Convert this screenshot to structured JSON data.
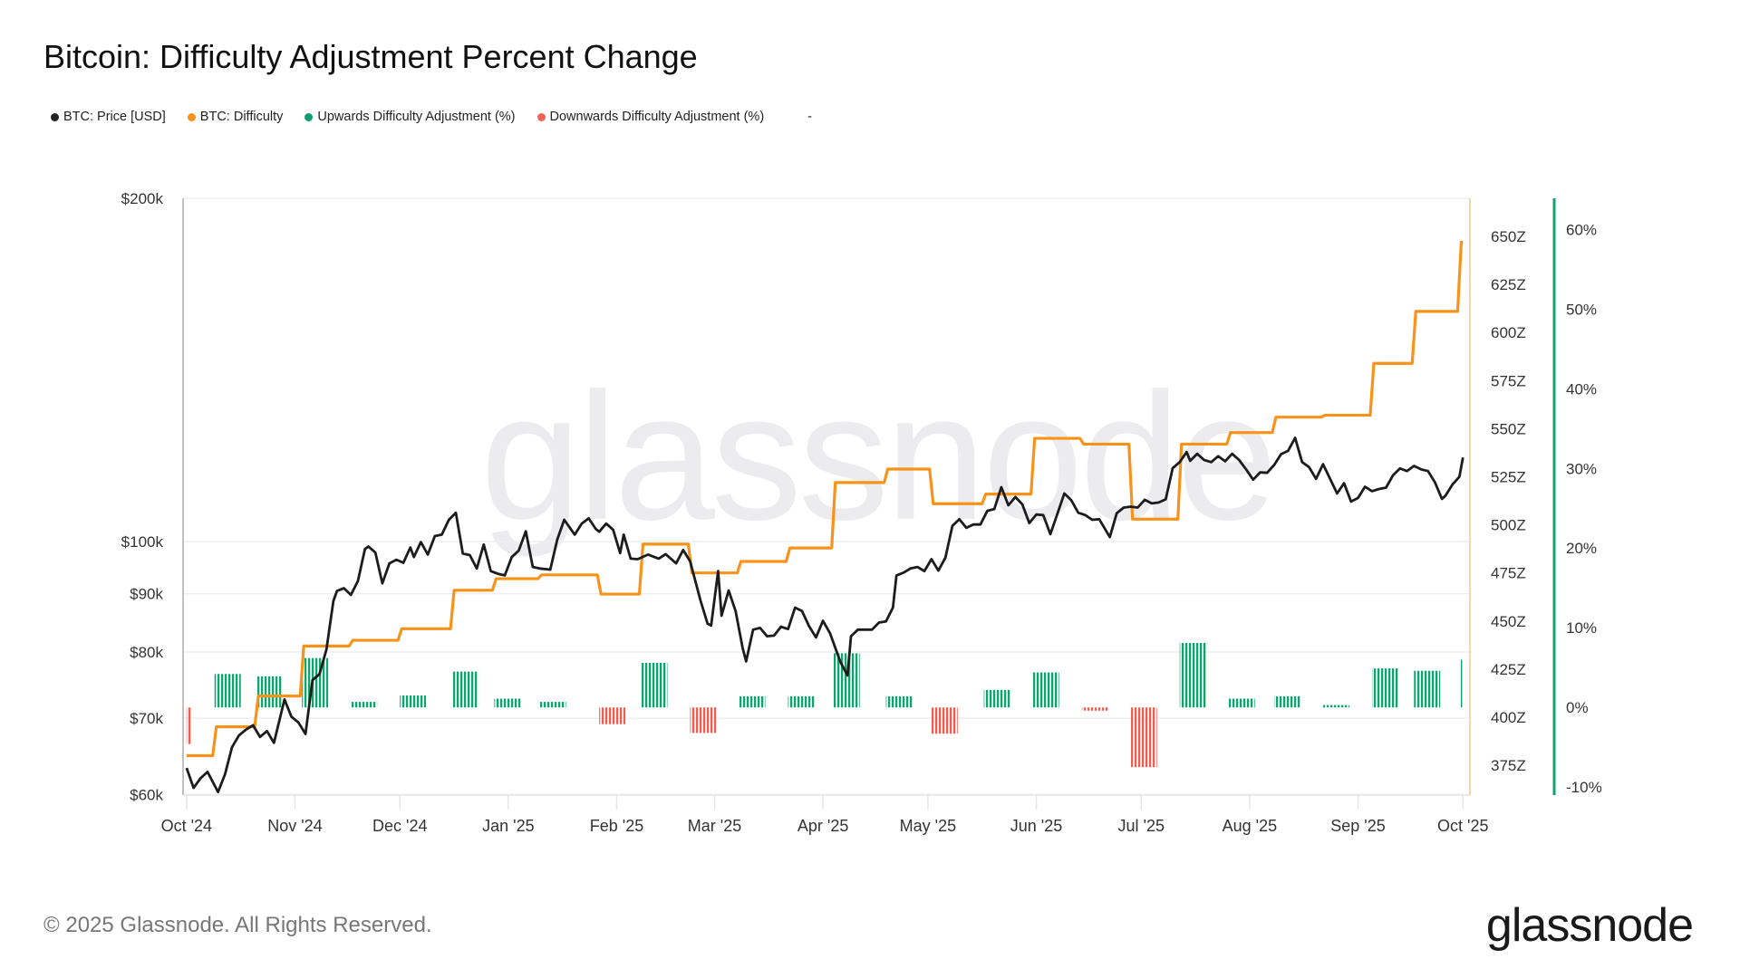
{
  "title": "Bitcoin: Difficulty Adjustment Percent Change",
  "legend": [
    {
      "label": "BTC: Price [USD]",
      "color": "#222222"
    },
    {
      "label": "BTC: Difficulty",
      "color": "#f7931a"
    },
    {
      "label": "Upwards Difficulty Adjustment (%)",
      "color": "#0f9d6e"
    },
    {
      "label": "Downwards Difficulty Adjustment (%)",
      "color": "#f0625a"
    }
  ],
  "legend_extra": "-",
  "footer": "© 2025 Glassnode. All Rights Reserved.",
  "logo": "glassnode",
  "watermark": "glassnode",
  "chart_data": {
    "type": "line",
    "xlim": [
      "2024-09-30",
      "2025-10-03"
    ],
    "x_ticks": [
      {
        "date": "2024-10-01",
        "label": "Oct '24"
      },
      {
        "date": "2024-11-01",
        "label": "Nov '24"
      },
      {
        "date": "2024-12-01",
        "label": "Dec '24"
      },
      {
        "date": "2025-01-01",
        "label": "Jan '25"
      },
      {
        "date": "2025-02-01",
        "label": "Feb '25"
      },
      {
        "date": "2025-03-01",
        "label": "Mar '25"
      },
      {
        "date": "2025-04-01",
        "label": "Apr '25"
      },
      {
        "date": "2025-05-01",
        "label": "May '25"
      },
      {
        "date": "2025-06-01",
        "label": "Jun '25"
      },
      {
        "date": "2025-07-01",
        "label": "Jul '25"
      },
      {
        "date": "2025-08-01",
        "label": "Aug '25"
      },
      {
        "date": "2025-09-01",
        "label": "Sep '25"
      },
      {
        "date": "2025-10-01",
        "label": "Oct '25"
      }
    ],
    "price_axis": {
      "scale": "log",
      "ylim": [
        59930,
        200000
      ],
      "grid": true,
      "ticks": [
        {
          "v": 200000,
          "label": "$200k"
        },
        {
          "v": 100000,
          "label": "$100k"
        },
        {
          "v": 90000,
          "label": "$90k"
        },
        {
          "v": 80000,
          "label": "$80k"
        },
        {
          "v": 70000,
          "label": "$70k"
        },
        {
          "v": 60000,
          "label": "$60k"
        }
      ]
    },
    "difficulty_axis": {
      "scale": "linear",
      "unit": "Z",
      "ylim": [
        359.5,
        669.8
      ],
      "ticks": [
        {
          "v": 375,
          "label": "375Z"
        },
        {
          "v": 400,
          "label": "400Z"
        },
        {
          "v": 425,
          "label": "425Z"
        },
        {
          "v": 450,
          "label": "450Z"
        },
        {
          "v": 475,
          "label": "475Z"
        },
        {
          "v": 500,
          "label": "500Z"
        },
        {
          "v": 525,
          "label": "525Z"
        },
        {
          "v": 550,
          "label": "550Z"
        },
        {
          "v": 575,
          "label": "575Z"
        },
        {
          "v": 600,
          "label": "600Z"
        },
        {
          "v": 625,
          "label": "625Z"
        },
        {
          "v": 650,
          "label": "650Z"
        }
      ]
    },
    "percent_axis": {
      "scale": "linear",
      "ylim": [
        -11,
        63.9
      ],
      "ticks": [
        {
          "v": -10,
          "label": "-10%"
        },
        {
          "v": 0,
          "label": "0%"
        },
        {
          "v": 10,
          "label": "10%"
        },
        {
          "v": 20,
          "label": "20%"
        },
        {
          "v": 30,
          "label": "30%"
        },
        {
          "v": 40,
          "label": "40%"
        },
        {
          "v": 50,
          "label": "50%"
        },
        {
          "v": 60,
          "label": "60%"
        }
      ]
    },
    "price": [
      [
        "2024-10-01",
        63300
      ],
      [
        "2024-10-03",
        60800
      ],
      [
        "2024-10-05",
        62000
      ],
      [
        "2024-10-07",
        62800
      ],
      [
        "2024-10-10",
        60300
      ],
      [
        "2024-10-12",
        62500
      ],
      [
        "2024-10-14",
        66000
      ],
      [
        "2024-10-16",
        67600
      ],
      [
        "2024-10-18",
        68400
      ],
      [
        "2024-10-20",
        69000
      ],
      [
        "2024-10-22",
        67400
      ],
      [
        "2024-10-24",
        68200
      ],
      [
        "2024-10-26",
        66600
      ],
      [
        "2024-10-29",
        72700
      ],
      [
        "2024-10-31",
        70200
      ],
      [
        "2024-11-02",
        69400
      ],
      [
        "2024-11-04",
        67800
      ],
      [
        "2024-11-06",
        75600
      ],
      [
        "2024-11-08",
        76500
      ],
      [
        "2024-11-10",
        80400
      ],
      [
        "2024-11-12",
        88700
      ],
      [
        "2024-11-13",
        90500
      ],
      [
        "2024-11-15",
        91000
      ],
      [
        "2024-11-17",
        89800
      ],
      [
        "2024-11-19",
        92300
      ],
      [
        "2024-11-21",
        98500
      ],
      [
        "2024-11-22",
        99000
      ],
      [
        "2024-11-24",
        97800
      ],
      [
        "2024-11-26",
        91900
      ],
      [
        "2024-11-28",
        95700
      ],
      [
        "2024-11-30",
        96400
      ],
      [
        "2024-12-02",
        95800
      ],
      [
        "2024-12-04",
        98800
      ],
      [
        "2024-12-05",
        96900
      ],
      [
        "2024-12-07",
        99900
      ],
      [
        "2024-12-09",
        97400
      ],
      [
        "2024-12-11",
        101100
      ],
      [
        "2024-12-13",
        101400
      ],
      [
        "2024-12-15",
        104500
      ],
      [
        "2024-12-17",
        106000
      ],
      [
        "2024-12-19",
        97600
      ],
      [
        "2024-12-21",
        97300
      ],
      [
        "2024-12-23",
        94700
      ],
      [
        "2024-12-25",
        99400
      ],
      [
        "2024-12-27",
        94200
      ],
      [
        "2024-12-29",
        93700
      ],
      [
        "2024-12-31",
        93400
      ],
      [
        "2025-01-02",
        96900
      ],
      [
        "2025-01-04",
        98200
      ],
      [
        "2025-01-06",
        102100
      ],
      [
        "2025-01-08",
        95000
      ],
      [
        "2025-01-10",
        94700
      ],
      [
        "2025-01-13",
        94500
      ],
      [
        "2025-01-15",
        100400
      ],
      [
        "2025-01-17",
        104500
      ],
      [
        "2025-01-20",
        101400
      ],
      [
        "2025-01-22",
        103700
      ],
      [
        "2025-01-24",
        104800
      ],
      [
        "2025-01-26",
        102600
      ],
      [
        "2025-01-27",
        102000
      ],
      [
        "2025-01-29",
        103700
      ],
      [
        "2025-01-31",
        102400
      ],
      [
        "2025-02-02",
        97700
      ],
      [
        "2025-02-03",
        101400
      ],
      [
        "2025-02-05",
        96600
      ],
      [
        "2025-02-07",
        96500
      ],
      [
        "2025-02-10",
        97400
      ],
      [
        "2025-02-13",
        96600
      ],
      [
        "2025-02-15",
        97500
      ],
      [
        "2025-02-18",
        95700
      ],
      [
        "2025-02-20",
        98300
      ],
      [
        "2025-02-22",
        96100
      ],
      [
        "2025-02-25",
        88700
      ],
      [
        "2025-02-27",
        84700
      ],
      [
        "2025-02-28",
        84400
      ],
      [
        "2025-03-02",
        94200
      ],
      [
        "2025-03-03",
        86100
      ],
      [
        "2025-03-05",
        90600
      ],
      [
        "2025-03-07",
        86900
      ],
      [
        "2025-03-09",
        80700
      ],
      [
        "2025-03-10",
        78500
      ],
      [
        "2025-03-12",
        83700
      ],
      [
        "2025-03-14",
        84000
      ],
      [
        "2025-03-16",
        82600
      ],
      [
        "2025-03-18",
        82700
      ],
      [
        "2025-03-20",
        84200
      ],
      [
        "2025-03-22",
        83800
      ],
      [
        "2025-03-24",
        87500
      ],
      [
        "2025-03-26",
        86900
      ],
      [
        "2025-03-28",
        84300
      ],
      [
        "2025-03-30",
        82400
      ],
      [
        "2025-04-01",
        85200
      ],
      [
        "2025-04-03",
        83100
      ],
      [
        "2025-04-06",
        78400
      ],
      [
        "2025-04-08",
        76300
      ],
      [
        "2025-04-09",
        82600
      ],
      [
        "2025-04-11",
        83700
      ],
      [
        "2025-04-13",
        83700
      ],
      [
        "2025-04-15",
        83700
      ],
      [
        "2025-04-17",
        84900
      ],
      [
        "2025-04-19",
        85100
      ],
      [
        "2025-04-21",
        87500
      ],
      [
        "2025-04-22",
        93400
      ],
      [
        "2025-04-24",
        93900
      ],
      [
        "2025-04-26",
        94700
      ],
      [
        "2025-04-28",
        95000
      ],
      [
        "2025-04-30",
        94200
      ],
      [
        "2025-05-02",
        96500
      ],
      [
        "2025-05-04",
        94300
      ],
      [
        "2025-05-06",
        96800
      ],
      [
        "2025-05-08",
        103200
      ],
      [
        "2025-05-10",
        104600
      ],
      [
        "2025-05-12",
        102800
      ],
      [
        "2025-05-14",
        103500
      ],
      [
        "2025-05-16",
        103500
      ],
      [
        "2025-05-18",
        106400
      ],
      [
        "2025-05-20",
        106800
      ],
      [
        "2025-05-22",
        111600
      ],
      [
        "2025-05-24",
        107600
      ],
      [
        "2025-05-26",
        109400
      ],
      [
        "2025-05-28",
        107800
      ],
      [
        "2025-05-30",
        103800
      ],
      [
        "2025-06-01",
        105600
      ],
      [
        "2025-06-03",
        105500
      ],
      [
        "2025-06-05",
        101500
      ],
      [
        "2025-06-07",
        105700
      ],
      [
        "2025-06-09",
        110200
      ],
      [
        "2025-06-11",
        108700
      ],
      [
        "2025-06-13",
        106000
      ],
      [
        "2025-06-15",
        105500
      ],
      [
        "2025-06-17",
        104500
      ],
      [
        "2025-06-19",
        104600
      ],
      [
        "2025-06-22",
        100900
      ],
      [
        "2025-06-24",
        105900
      ],
      [
        "2025-06-26",
        107100
      ],
      [
        "2025-06-28",
        107300
      ],
      [
        "2025-06-30",
        107100
      ],
      [
        "2025-07-02",
        108800
      ],
      [
        "2025-07-04",
        108000
      ],
      [
        "2025-07-06",
        108200
      ],
      [
        "2025-07-08",
        108900
      ],
      [
        "2025-07-10",
        116000
      ],
      [
        "2025-07-12",
        117400
      ],
      [
        "2025-07-14",
        119800
      ],
      [
        "2025-07-15",
        117700
      ],
      [
        "2025-07-17",
        119400
      ],
      [
        "2025-07-19",
        117900
      ],
      [
        "2025-07-21",
        117400
      ],
      [
        "2025-07-23",
        118800
      ],
      [
        "2025-07-25",
        117600
      ],
      [
        "2025-07-27",
        119400
      ],
      [
        "2025-07-29",
        117900
      ],
      [
        "2025-07-31",
        115700
      ],
      [
        "2025-08-02",
        113300
      ],
      [
        "2025-08-04",
        115000
      ],
      [
        "2025-08-06",
        114900
      ],
      [
        "2025-08-08",
        116700
      ],
      [
        "2025-08-10",
        119300
      ],
      [
        "2025-08-12",
        120100
      ],
      [
        "2025-08-14",
        123300
      ],
      [
        "2025-08-16",
        117400
      ],
      [
        "2025-08-18",
        116200
      ],
      [
        "2025-08-20",
        113500
      ],
      [
        "2025-08-22",
        116900
      ],
      [
        "2025-08-24",
        113500
      ],
      [
        "2025-08-26",
        110200
      ],
      [
        "2025-08-28",
        112500
      ],
      [
        "2025-08-30",
        108400
      ],
      [
        "2025-09-01",
        109200
      ],
      [
        "2025-09-03",
        111700
      ],
      [
        "2025-09-05",
        110700
      ],
      [
        "2025-09-07",
        111200
      ],
      [
        "2025-09-09",
        111500
      ],
      [
        "2025-09-11",
        114300
      ],
      [
        "2025-09-13",
        115900
      ],
      [
        "2025-09-15",
        115300
      ],
      [
        "2025-09-17",
        116500
      ],
      [
        "2025-09-19",
        115700
      ],
      [
        "2025-09-21",
        115300
      ],
      [
        "2025-09-23",
        112700
      ],
      [
        "2025-09-25",
        109000
      ],
      [
        "2025-09-26",
        109700
      ],
      [
        "2025-09-28",
        112200
      ],
      [
        "2025-09-30",
        114000
      ],
      [
        "2025-10-01",
        118500
      ]
    ],
    "difficulty_steps": [
      [
        "2024-10-01",
        380
      ],
      [
        "2024-10-09",
        395
      ],
      [
        "2024-10-21",
        411
      ],
      [
        "2024-11-03",
        437
      ],
      [
        "2024-11-17",
        440
      ],
      [
        "2024-12-01",
        446
      ],
      [
        "2024-12-16",
        466
      ],
      [
        "2024-12-28",
        472
      ],
      [
        "2025-01-10",
        474
      ],
      [
        "2025-01-27",
        464
      ],
      [
        "2025-02-08",
        490
      ],
      [
        "2025-02-22",
        475
      ],
      [
        "2025-03-08",
        481
      ],
      [
        "2025-03-22",
        488
      ],
      [
        "2025-04-04",
        522
      ],
      [
        "2025-04-19",
        529
      ],
      [
        "2025-05-02",
        511
      ],
      [
        "2025-05-17",
        516
      ],
      [
        "2025-05-31",
        545
      ],
      [
        "2025-06-14",
        542
      ],
      [
        "2025-06-28",
        503
      ],
      [
        "2025-07-12",
        542
      ],
      [
        "2025-07-26",
        548
      ],
      [
        "2025-08-08",
        556
      ],
      [
        "2025-08-22",
        557
      ],
      [
        "2025-09-05",
        584
      ],
      [
        "2025-09-17",
        611
      ],
      [
        "2025-09-30",
        647
      ]
    ],
    "adjustments_pct": [
      [
        "2024-10-01",
        -4.6
      ],
      [
        "2024-10-09",
        4.2
      ],
      [
        "2024-10-21",
        3.9
      ],
      [
        "2024-11-03",
        6.2
      ],
      [
        "2024-11-17",
        0.7
      ],
      [
        "2024-12-01",
        1.5
      ],
      [
        "2024-12-16",
        4.5
      ],
      [
        "2024-12-28",
        1.1
      ],
      [
        "2025-01-10",
        0.7
      ],
      [
        "2025-01-27",
        -2.1
      ],
      [
        "2025-02-08",
        5.6
      ],
      [
        "2025-02-22",
        -3.2
      ],
      [
        "2025-03-08",
        1.4
      ],
      [
        "2025-03-22",
        1.4
      ],
      [
        "2025-04-04",
        6.8
      ],
      [
        "2025-04-19",
        1.4
      ],
      [
        "2025-05-02",
        -3.3
      ],
      [
        "2025-05-17",
        2.2
      ],
      [
        "2025-05-31",
        4.4
      ],
      [
        "2025-06-14",
        -0.4
      ],
      [
        "2025-06-28",
        -7.5
      ],
      [
        "2025-07-12",
        8.1
      ],
      [
        "2025-07-26",
        1.1
      ],
      [
        "2025-08-08",
        1.4
      ],
      [
        "2025-08-22",
        0.3
      ],
      [
        "2025-09-05",
        4.9
      ],
      [
        "2025-09-17",
        4.6
      ],
      [
        "2025-09-30",
        6.0
      ]
    ]
  }
}
